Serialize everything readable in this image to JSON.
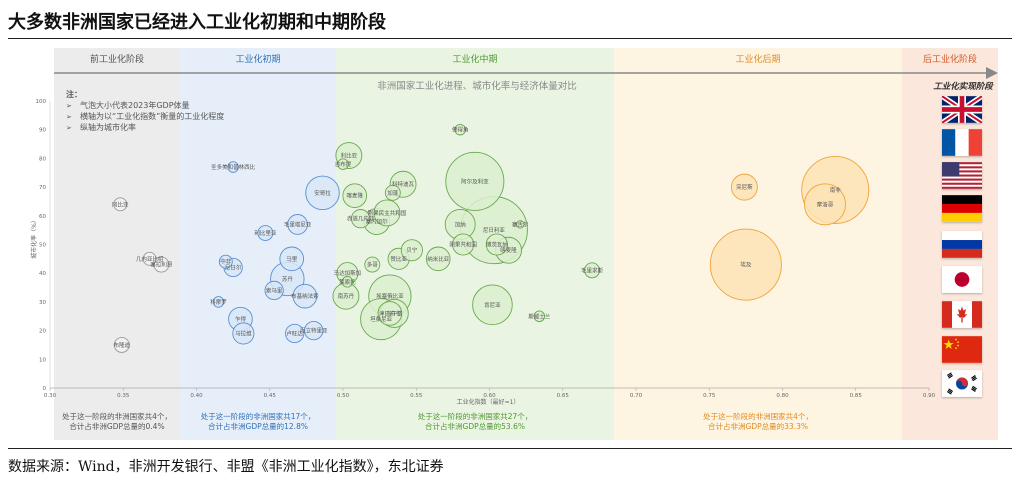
{
  "title": "大多数非洲国家已经进入工业化初期和中期阶段",
  "source": "数据来源：Wind，非洲开发银行、非盟《非洲工业化指数》，东北证券",
  "stages": [
    {
      "label": "前工业化阶段",
      "foot": [
        "处于这一阶段的非洲国家共4个，",
        "合计占非洲GDP总量的0.4%"
      ],
      "color": "#d9d9d9",
      "text": "#555555"
    },
    {
      "label": "工业化初期",
      "foot": [
        "处于这一阶段的非洲国家共17个，",
        "合计占非洲GDP总量的12.8%"
      ],
      "color": "#dbe8f6",
      "text": "#2f6fb7"
    },
    {
      "label": "工业化中期",
      "foot": [
        "处于这一阶段的非洲国家共27个，",
        "合计占非洲GDP总量的53.6%"
      ],
      "color": "#e3f0da",
      "text": "#4e9a2e"
    },
    {
      "label": "工业化后期",
      "foot": [
        "处于这一阶段的非洲国家共4个，",
        "合计占非洲GDP总量的33.3%"
      ],
      "color": "#fdefd6",
      "text": "#e08a1e"
    },
    {
      "label": "后工业化阶段",
      "foot": [],
      "color": "#fbe2d5",
      "text": "#d05a2a"
    }
  ],
  "flag_column_label": "工业化实现阶段",
  "flags": [
    "uk-flag-icon",
    "france-flag-icon",
    "usa-flag-icon",
    "germany-flag-icon",
    "russia-flag-icon",
    "japan-flag-icon",
    "canada-flag-icon",
    "china-flag-icon",
    "korea-flag-icon"
  ],
  "chart_data": {
    "type": "scatter",
    "title": "非洲国家工业化进程、城市化率与经济体量对比",
    "xlabel": "工业化指数（最好=1）",
    "ylabel": "城市化率（%）",
    "xlim": [
      0.3,
      0.9
    ],
    "ylim": [
      0,
      100
    ],
    "x_ticks": [
      "0.30",
      "0.35",
      "0.40",
      "0.45",
      "0.50",
      "0.55",
      "0.60",
      "0.65",
      "0.70",
      "0.75",
      "0.80",
      "0.85",
      "0.90"
    ],
    "y_ticks": [
      "0",
      "10",
      "20",
      "30",
      "40",
      "50",
      "60",
      "70",
      "80",
      "90",
      "100"
    ],
    "notes": [
      "注：",
      "气泡大小代表2023年GDP体量",
      "横轴为以“工业化指数”衡量的工业化程度",
      "纵轴为城市化率"
    ],
    "points": [
      {
        "name": "冈比亚",
        "x": 0.348,
        "y": 64,
        "size": 1.5
      },
      {
        "name": "几内亚比绍",
        "x": 0.368,
        "y": 45,
        "size": 1.5
      },
      {
        "name": "塞拉利昂",
        "x": 0.376,
        "y": 43,
        "size": 2
      },
      {
        "name": "布隆迪",
        "x": 0.349,
        "y": 15,
        "size": 2
      },
      {
        "name": "圣多美和普林西比",
        "x": 0.425,
        "y": 77,
        "size": 1
      },
      {
        "name": "中非",
        "x": 0.42,
        "y": 44,
        "size": 1.5
      },
      {
        "name": "尼日尔",
        "x": 0.425,
        "y": 42,
        "size": 3
      },
      {
        "name": "科摩罗",
        "x": 0.415,
        "y": 30,
        "size": 1
      },
      {
        "name": "乍得",
        "x": 0.43,
        "y": 24,
        "size": 5
      },
      {
        "name": "马拉维",
        "x": 0.432,
        "y": 19,
        "size": 4
      },
      {
        "name": "利比里亚",
        "x": 0.447,
        "y": 54,
        "size": 2
      },
      {
        "name": "毛里塔尼亚",
        "x": 0.469,
        "y": 57,
        "size": 3.5
      },
      {
        "name": "马里",
        "x": 0.465,
        "y": 45,
        "size": 5
      },
      {
        "name": "苏丹",
        "x": 0.462,
        "y": 38,
        "size": 10
      },
      {
        "name": "索马里",
        "x": 0.453,
        "y": 34,
        "size": 3
      },
      {
        "name": "布基纳法索",
        "x": 0.474,
        "y": 32,
        "size": 5
      },
      {
        "name": "厄立特里亚",
        "x": 0.48,
        "y": 20,
        "size": 3
      },
      {
        "name": "卢旺达",
        "x": 0.467,
        "y": 19,
        "size": 3
      },
      {
        "name": "安哥拉",
        "x": 0.486,
        "y": 68,
        "size": 10
      },
      {
        "name": "吉布提",
        "x": 0.5,
        "y": 78,
        "size": 1
      },
      {
        "name": "利比亚",
        "x": 0.504,
        "y": 81,
        "size": 6
      },
      {
        "name": "南苏丹",
        "x": 0.502,
        "y": 32,
        "size": 6
      },
      {
        "name": "马达加斯加",
        "x": 0.503,
        "y": 40,
        "size": 4
      },
      {
        "name": "莱索托",
        "x": 0.503,
        "y": 37,
        "size": 1
      },
      {
        "name": "喀麦隆",
        "x": 0.508,
        "y": 67,
        "size": 5
      },
      {
        "name": "赤道几内亚",
        "x": 0.512,
        "y": 59,
        "size": 3
      },
      {
        "name": "塞内加尔",
        "x": 0.523,
        "y": 58,
        "size": 6
      },
      {
        "name": "多哥",
        "x": 0.52,
        "y": 43,
        "size": 2
      },
      {
        "name": "坦桑尼亚",
        "x": 0.526,
        "y": 24,
        "size": 15
      },
      {
        "name": "刚果民主共和国",
        "x": 0.53,
        "y": 61,
        "size": 6
      },
      {
        "name": "加蓬",
        "x": 0.534,
        "y": 68,
        "size": 2
      },
      {
        "name": "科特迪瓦",
        "x": 0.541,
        "y": 71,
        "size": 6
      },
      {
        "name": "赞比亚",
        "x": 0.538,
        "y": 45,
        "size": 4
      },
      {
        "name": "贝宁",
        "x": 0.547,
        "y": 48,
        "size": 4
      },
      {
        "name": "埃塞俄比亚",
        "x": 0.532,
        "y": 32,
        "size": 16
      },
      {
        "name": "乌干达",
        "x": 0.535,
        "y": 26,
        "size": 7
      },
      {
        "name": "津巴布韦",
        "x": 0.532,
        "y": 26,
        "size": 5
      },
      {
        "name": "纳米比亚",
        "x": 0.565,
        "y": 45,
        "size": 5
      },
      {
        "name": "阿尔及利亚",
        "x": 0.59,
        "y": 72,
        "size": 30
      },
      {
        "name": "加纳",
        "x": 0.58,
        "y": 57,
        "size": 8
      },
      {
        "name": "尼日利亚",
        "x": 0.603,
        "y": 55,
        "size": 40
      },
      {
        "name": "刚果共和国",
        "x": 0.582,
        "y": 50,
        "size": 4
      },
      {
        "name": "博茨瓦纳",
        "x": 0.605,
        "y": 50,
        "size": 4
      },
      {
        "name": "肯尼亚",
        "x": 0.602,
        "y": 29,
        "size": 14
      },
      {
        "name": "佛得角",
        "x": 0.58,
        "y": 90,
        "size": 1
      },
      {
        "name": "塞舌尔",
        "x": 0.621,
        "y": 57,
        "size": 0.5
      },
      {
        "name": "喀麦隆",
        "x": 0.613,
        "y": 48,
        "size": 6
      },
      {
        "name": "斯威士兰",
        "x": 0.634,
        "y": 25,
        "size": 1
      },
      {
        "name": "毛里求斯",
        "x": 0.67,
        "y": 41,
        "size": 2
      },
      {
        "name": "突尼斯",
        "x": 0.774,
        "y": 70,
        "size": 6
      },
      {
        "name": "埃及",
        "x": 0.775,
        "y": 43,
        "size": 45
      },
      {
        "name": "南非",
        "x": 0.836,
        "y": 69,
        "size": 40
      },
      {
        "name": "摩洛哥",
        "x": 0.829,
        "y": 64,
        "size": 15
      }
    ]
  }
}
